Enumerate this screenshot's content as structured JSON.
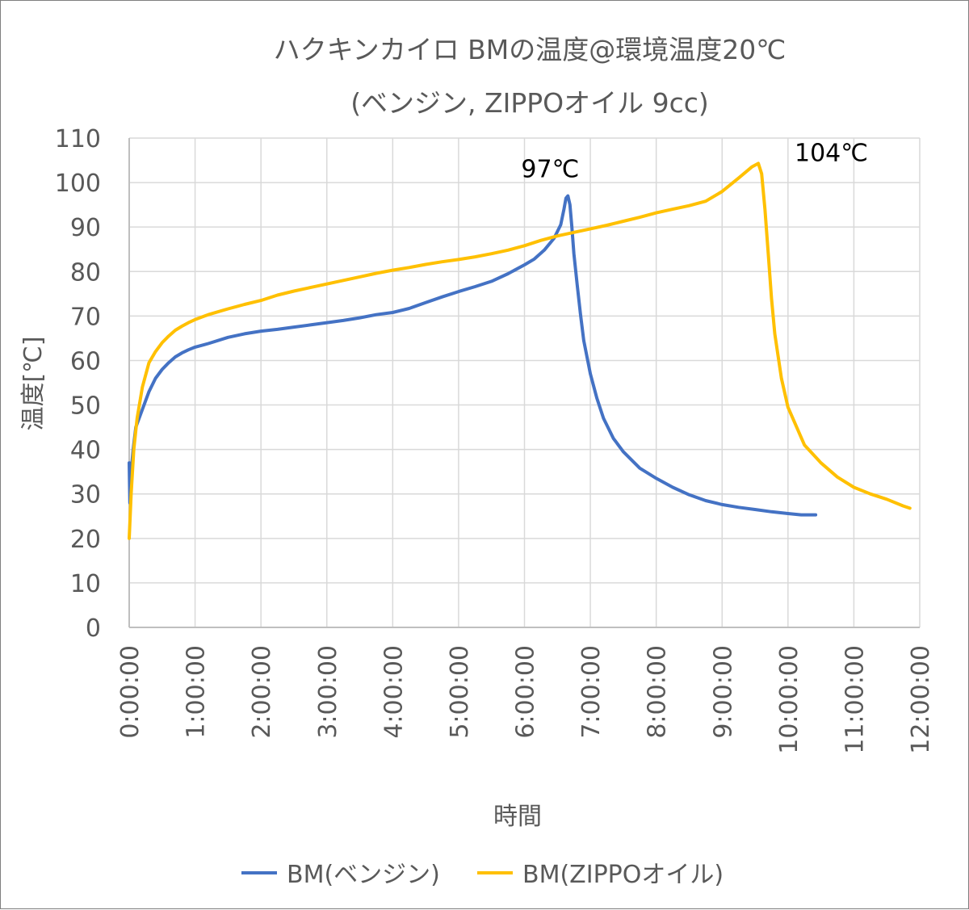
{
  "chart_data": {
    "type": "line",
    "title": "ハクキンカイロ BMの温度@環境温度20℃",
    "subtitle": "(ベンジン, ZIPPOオイル 9cc)",
    "xlabel": "時間",
    "ylabel": "温度[℃]",
    "x_unit": "hours",
    "xlim": [
      0,
      12
    ],
    "ylim": [
      0,
      110
    ],
    "x_ticks": [
      0,
      1,
      2,
      3,
      4,
      5,
      6,
      7,
      8,
      9,
      10,
      11,
      12
    ],
    "x_tick_labels": [
      "0:00:00",
      "1:00:00",
      "2:00:00",
      "3:00:00",
      "4:00:00",
      "5:00:00",
      "6:00:00",
      "7:00:00",
      "8:00:00",
      "9:00:00",
      "10:00:00",
      "11:00:00",
      "12:00:00"
    ],
    "y_ticks": [
      0,
      10,
      20,
      30,
      40,
      50,
      60,
      70,
      80,
      90,
      100,
      110
    ],
    "y_tick_labels": [
      "0",
      "10",
      "20",
      "30",
      "40",
      "50",
      "60",
      "70",
      "80",
      "90",
      "100",
      "110"
    ],
    "grid": true,
    "legend_position": "bottom",
    "series": [
      {
        "name": "BM(ベンジン)",
        "color": "#4472c4",
        "points": [
          [
            0.0,
            37
          ],
          [
            0.01,
            28
          ],
          [
            0.03,
            35
          ],
          [
            0.06,
            40
          ],
          [
            0.1,
            45
          ],
          [
            0.2,
            49
          ],
          [
            0.3,
            53
          ],
          [
            0.4,
            56
          ],
          [
            0.5,
            58
          ],
          [
            0.6,
            59.5
          ],
          [
            0.7,
            60.8
          ],
          [
            0.8,
            61.7
          ],
          [
            0.9,
            62.4
          ],
          [
            1.0,
            63
          ],
          [
            1.2,
            63.8
          ],
          [
            1.5,
            65.2
          ],
          [
            1.75,
            66
          ],
          [
            2.0,
            66.6
          ],
          [
            2.25,
            67
          ],
          [
            2.5,
            67.5
          ],
          [
            2.75,
            68
          ],
          [
            3.0,
            68.5
          ],
          [
            3.25,
            69
          ],
          [
            3.5,
            69.6
          ],
          [
            3.75,
            70.3
          ],
          [
            4.0,
            70.8
          ],
          [
            4.25,
            71.7
          ],
          [
            4.5,
            73
          ],
          [
            4.75,
            74.3
          ],
          [
            5.0,
            75.5
          ],
          [
            5.25,
            76.6
          ],
          [
            5.5,
            77.8
          ],
          [
            5.75,
            79.5
          ],
          [
            6.0,
            81.5
          ],
          [
            6.15,
            82.8
          ],
          [
            6.3,
            84.8
          ],
          [
            6.45,
            87.5
          ],
          [
            6.55,
            90.5
          ],
          [
            6.6,
            94
          ],
          [
            6.63,
            96.5
          ],
          [
            6.66,
            97
          ],
          [
            6.69,
            95
          ],
          [
            6.72,
            90
          ],
          [
            6.75,
            84
          ],
          [
            6.8,
            77
          ],
          [
            6.85,
            70.5
          ],
          [
            6.9,
            64.5
          ],
          [
            7.0,
            57
          ],
          [
            7.1,
            51.5
          ],
          [
            7.2,
            47
          ],
          [
            7.35,
            42.5
          ],
          [
            7.5,
            39.5
          ],
          [
            7.75,
            35.8
          ],
          [
            8.0,
            33.5
          ],
          [
            8.25,
            31.5
          ],
          [
            8.5,
            29.8
          ],
          [
            8.75,
            28.5
          ],
          [
            9.0,
            27.6
          ],
          [
            9.25,
            27
          ],
          [
            9.5,
            26.5
          ],
          [
            9.75,
            26
          ],
          [
            10.0,
            25.6
          ],
          [
            10.2,
            25.3
          ],
          [
            10.42,
            25.3
          ]
        ]
      },
      {
        "name": "BM(ZIPPOオイル)",
        "color": "#ffc000",
        "points": [
          [
            0.0,
            20
          ],
          [
            0.03,
            30
          ],
          [
            0.07,
            40
          ],
          [
            0.12,
            47
          ],
          [
            0.2,
            54
          ],
          [
            0.3,
            59.5
          ],
          [
            0.4,
            62
          ],
          [
            0.5,
            64
          ],
          [
            0.6,
            65.5
          ],
          [
            0.7,
            66.8
          ],
          [
            0.8,
            67.7
          ],
          [
            0.9,
            68.5
          ],
          [
            1.0,
            69.2
          ],
          [
            1.2,
            70.3
          ],
          [
            1.5,
            71.6
          ],
          [
            1.75,
            72.6
          ],
          [
            2.0,
            73.5
          ],
          [
            2.25,
            74.7
          ],
          [
            2.5,
            75.6
          ],
          [
            2.75,
            76.4
          ],
          [
            3.0,
            77.2
          ],
          [
            3.25,
            78
          ],
          [
            3.5,
            78.8
          ],
          [
            3.75,
            79.6
          ],
          [
            4.0,
            80.3
          ],
          [
            4.25,
            80.9
          ],
          [
            4.5,
            81.6
          ],
          [
            4.75,
            82.2
          ],
          [
            5.0,
            82.7
          ],
          [
            5.25,
            83.3
          ],
          [
            5.5,
            84
          ],
          [
            5.75,
            84.8
          ],
          [
            6.0,
            85.8
          ],
          [
            6.25,
            87
          ],
          [
            6.5,
            88
          ],
          [
            6.75,
            88.8
          ],
          [
            7.0,
            89.6
          ],
          [
            7.25,
            90.4
          ],
          [
            7.5,
            91.3
          ],
          [
            7.75,
            92.2
          ],
          [
            8.0,
            93.2
          ],
          [
            8.25,
            94
          ],
          [
            8.5,
            94.8
          ],
          [
            8.75,
            95.8
          ],
          [
            9.0,
            98
          ],
          [
            9.25,
            101
          ],
          [
            9.45,
            103.5
          ],
          [
            9.55,
            104.3
          ],
          [
            9.6,
            102
          ],
          [
            9.65,
            94
          ],
          [
            9.7,
            84
          ],
          [
            9.75,
            74
          ],
          [
            9.8,
            66
          ],
          [
            9.9,
            56
          ],
          [
            10.0,
            49.5
          ],
          [
            10.25,
            41
          ],
          [
            10.5,
            37
          ],
          [
            10.75,
            33.8
          ],
          [
            11.0,
            31.5
          ],
          [
            11.25,
            30
          ],
          [
            11.5,
            28.8
          ],
          [
            11.75,
            27.3
          ],
          [
            11.85,
            26.8
          ]
        ]
      }
    ],
    "annotations": [
      {
        "text": "97℃",
        "x": 5.95,
        "y": 101.2
      },
      {
        "text": "104℃",
        "x": 10.1,
        "y": 104.8
      }
    ]
  }
}
